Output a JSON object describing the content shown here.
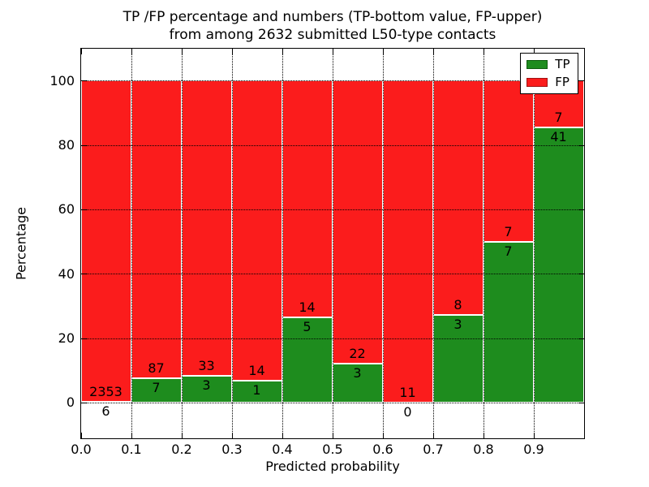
{
  "figure": {
    "title_line1": "TP /FP percentage and numbers (TP-bottom value, FP-upper)",
    "title_line2": "from among 2632 submitted L50-type contacts",
    "xlabel": "Predicted probability",
    "ylabel": "Percentage"
  },
  "legend": {
    "position": "upper right",
    "items": [
      {
        "label": "TP",
        "color": "#1e8c1e",
        "edge_color": "#0d5c0d"
      },
      {
        "label": "FP",
        "color": "#fb1c1c",
        "edge_color": "#a01212"
      }
    ]
  },
  "chart_data": {
    "type": "bar",
    "variant": "stacked-100-percent",
    "title": "TP /FP percentage and numbers (TP-bottom value, FP-upper) from among 2632 submitted L50-type contacts",
    "xlabel": "Predicted probability",
    "ylabel": "Percentage",
    "total_submitted_contacts": 2632,
    "x_tick_labels": [
      "0.0",
      "0.1",
      "0.2",
      "0.3",
      "0.4",
      "0.5",
      "0.6",
      "0.7",
      "0.8",
      "0.9"
    ],
    "y_tick_values": [
      0,
      20,
      40,
      60,
      80,
      100
    ],
    "xlim": [
      0.0,
      1.0
    ],
    "ylim": [
      -11,
      110
    ],
    "bin_width": 0.1,
    "grid": "dotted",
    "legend_position": "upper right",
    "bar_edge_color": "#ffffff",
    "series": [
      {
        "name": "TP",
        "color": "#1e8c1e",
        "counts": [
          6,
          7,
          3,
          1,
          5,
          3,
          0,
          3,
          7,
          41
        ]
      },
      {
        "name": "FP",
        "color": "#fb1c1c",
        "counts": [
          2353,
          87,
          33,
          14,
          14,
          22,
          11,
          8,
          7,
          7
        ]
      }
    ],
    "tp_percent_by_bin": [
      0.25,
      7.45,
      8.33,
      6.67,
      26.32,
      12.0,
      0.0,
      27.27,
      50.0,
      85.42
    ]
  }
}
